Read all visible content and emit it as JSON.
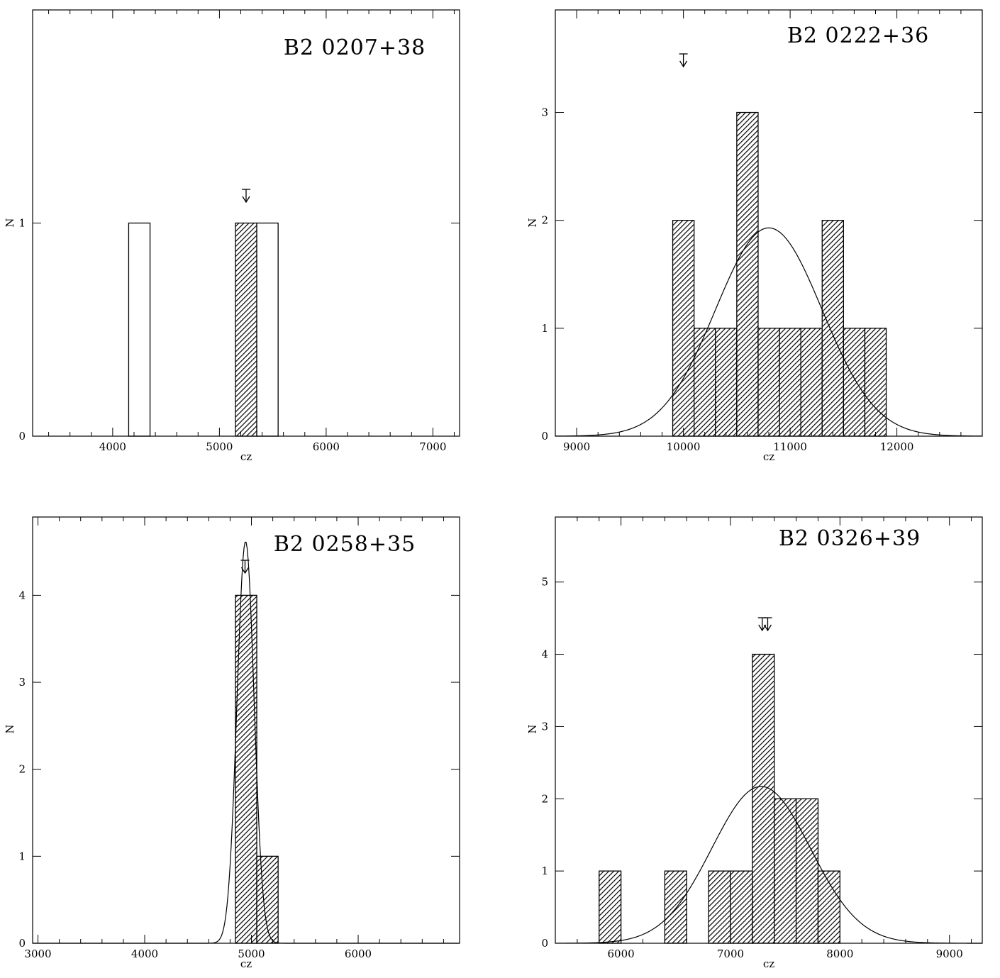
{
  "chart_data": [
    {
      "type": "bar",
      "title": "B2 0207+38",
      "xlabel": "cz",
      "ylabel": "N",
      "xlim": [
        3250,
        7250
      ],
      "ylim": [
        0,
        2
      ],
      "xticks": [
        4000,
        5000,
        6000,
        7000
      ],
      "yticks": [
        0,
        1
      ],
      "bin_width": 200,
      "series": [
        {
          "style": "hatched",
          "bins": [
            {
              "x0": 5150,
              "x1": 5350,
              "value": 1
            }
          ]
        },
        {
          "style": "open",
          "bins": [
            {
              "x0": 4150,
              "x1": 4350,
              "value": 1
            },
            {
              "x0": 5350,
              "x1": 5550,
              "value": 1
            }
          ]
        }
      ],
      "markers": [
        5250
      ],
      "gaussian": null
    },
    {
      "type": "bar",
      "title": "B2 0222+36",
      "xlabel": "cz",
      "ylabel": "N",
      "xlim": [
        8800,
        12800
      ],
      "ylim": [
        0,
        3.95
      ],
      "xticks": [
        9000,
        10000,
        11000,
        12000
      ],
      "yticks": [
        0,
        1,
        2,
        3
      ],
      "bin_width": 200,
      "series": [
        {
          "style": "hatched",
          "bins": [
            {
              "x0": 9900,
              "x1": 10100,
              "value": 2
            },
            {
              "x0": 10100,
              "x1": 10300,
              "value": 1
            },
            {
              "x0": 10300,
              "x1": 10500,
              "value": 1
            },
            {
              "x0": 10500,
              "x1": 10700,
              "value": 3
            },
            {
              "x0": 10700,
              "x1": 10900,
              "value": 1
            },
            {
              "x0": 10900,
              "x1": 11100,
              "value": 1
            },
            {
              "x0": 11100,
              "x1": 11300,
              "value": 1
            },
            {
              "x0": 11300,
              "x1": 11500,
              "value": 2
            },
            {
              "x0": 11500,
              "x1": 11700,
              "value": 1
            },
            {
              "x0": 11700,
              "x1": 11900,
              "value": 1
            }
          ]
        }
      ],
      "markers": [
        10000
      ],
      "gaussian": {
        "mean": 10800,
        "sigma": 500,
        "peak": 1.93
      }
    },
    {
      "type": "bar",
      "title": "B2 0258+35",
      "xlabel": "cz",
      "ylabel": "N",
      "xlim": [
        2950,
        6950
      ],
      "ylim": [
        0,
        4.9
      ],
      "xticks": [
        3000,
        4000,
        5000,
        6000
      ],
      "yticks": [
        0,
        1,
        2,
        3,
        4
      ],
      "bin_width": 200,
      "series": [
        {
          "style": "hatched",
          "bins": [
            {
              "x0": 4850,
              "x1": 5050,
              "value": 4
            },
            {
              "x0": 5050,
              "x1": 5250,
              "value": 1
            }
          ]
        }
      ],
      "markers": [
        4940
      ],
      "gaussian": {
        "mean": 4945,
        "sigma": 80,
        "peak": 4.62
      }
    },
    {
      "type": "bar",
      "title": "B2 0326+39",
      "xlabel": "cz",
      "ylabel": "N",
      "xlim": [
        5400,
        9300
      ],
      "ylim": [
        0,
        5.9
      ],
      "xticks": [
        6000,
        7000,
        8000,
        9000
      ],
      "yticks": [
        0,
        1,
        2,
        3,
        4,
        5
      ],
      "bin_width": 200,
      "series": [
        {
          "style": "hatched",
          "bins": [
            {
              "x0": 5800,
              "x1": 6000,
              "value": 1
            },
            {
              "x0": 6400,
              "x1": 6600,
              "value": 1
            },
            {
              "x0": 6800,
              "x1": 7000,
              "value": 1
            },
            {
              "x0": 7000,
              "x1": 7200,
              "value": 1
            },
            {
              "x0": 7200,
              "x1": 7400,
              "value": 4
            },
            {
              "x0": 7400,
              "x1": 7600,
              "value": 2
            },
            {
              "x0": 7600,
              "x1": 7800,
              "value": 2
            },
            {
              "x0": 7800,
              "x1": 8000,
              "value": 1
            }
          ]
        }
      ],
      "markers": [
        7290,
        7340
      ],
      "gaussian": {
        "mean": 7280,
        "sigma": 450,
        "peak": 2.17
      }
    }
  ]
}
